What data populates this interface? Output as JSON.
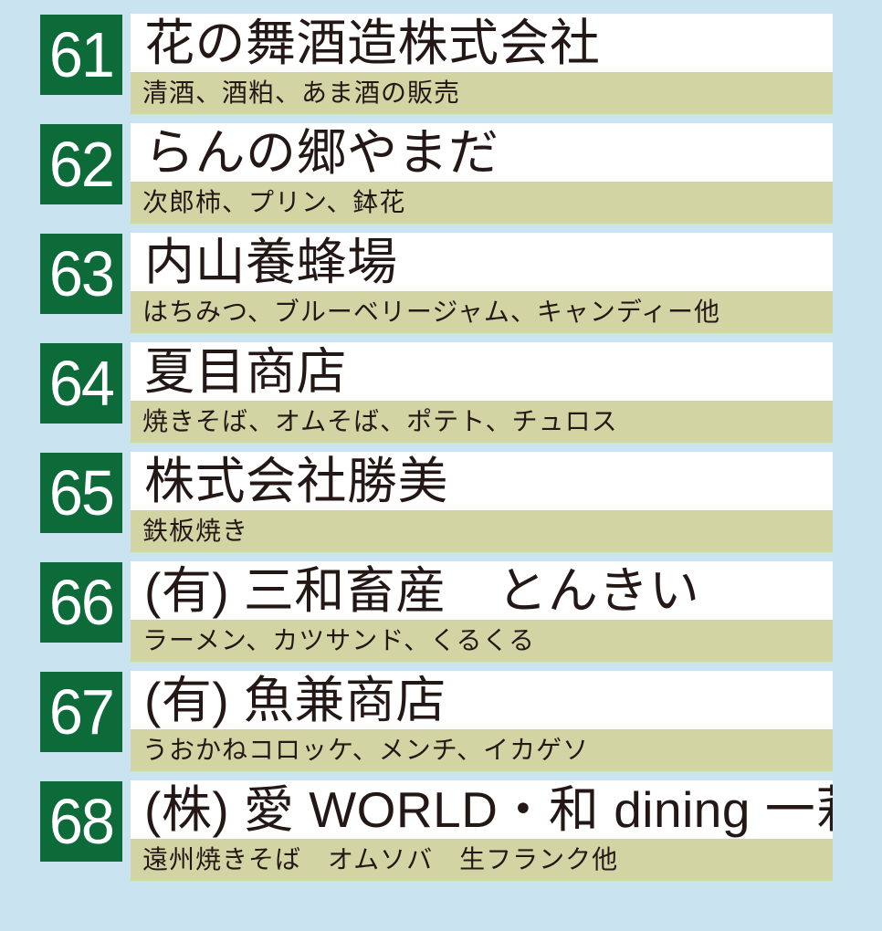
{
  "colors": {
    "badge_green": "#0d6b3a",
    "band_tan": "#d3d4a4",
    "name_bg": "#ffffff",
    "page_blue": "#c9e3f1",
    "ink": "#231815",
    "badge_text": "#ffffff"
  },
  "vendors": [
    {
      "number": "61",
      "name": "花の舞酒造株式会社",
      "products": "清酒、酒粕、あま酒の販売"
    },
    {
      "number": "62",
      "name": "らんの郷やまだ",
      "products": "次郎柿、プリン、鉢花"
    },
    {
      "number": "63",
      "name": "内山養蜂場",
      "products": "はちみつ、ブルーベリージャム、キャンディー他"
    },
    {
      "number": "64",
      "name": "夏目商店",
      "products": "焼きそば、オムそば、ポテト、チュロス"
    },
    {
      "number": "65",
      "name": "株式会社勝美",
      "products": "鉄板焼き"
    },
    {
      "number": "66",
      "name": "(有) 三和畜産　とんきい",
      "products": "ラーメン、カツサンド、くるくる"
    },
    {
      "number": "67",
      "name": "(有) 魚兼商店",
      "products": "うおかねコロッケ、メンチ、イカゲソ"
    },
    {
      "number": "68",
      "name": "(株) 愛 WORLD・和 dining 一莉",
      "products": "遠州焼きそば　オムソバ　生フランク他"
    }
  ]
}
